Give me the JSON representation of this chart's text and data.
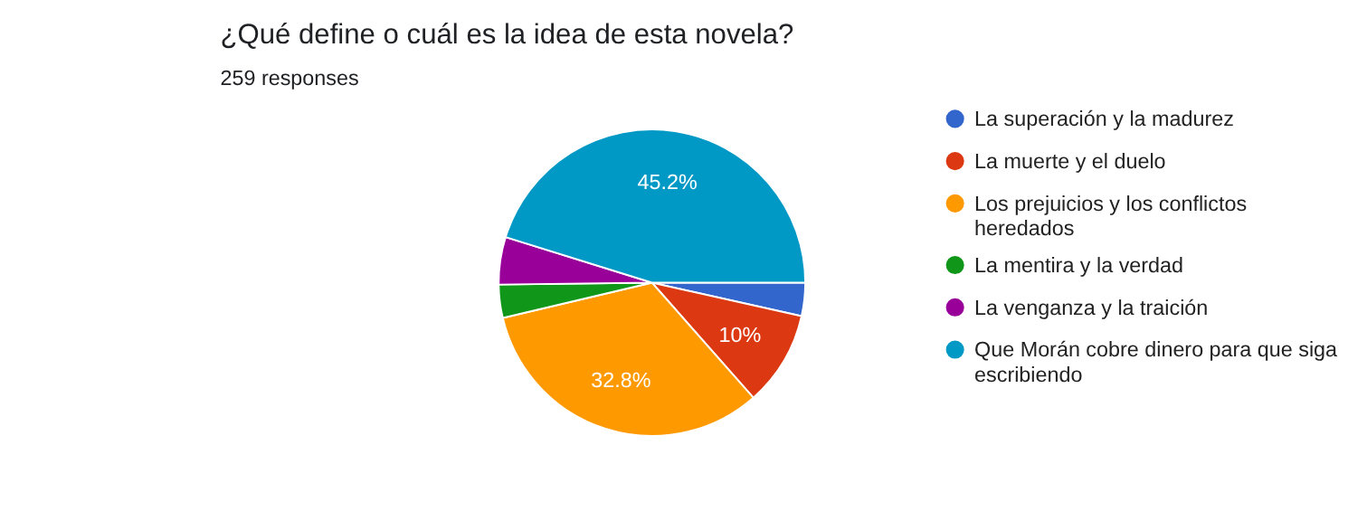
{
  "chart_data": {
    "type": "pie",
    "title": "¿Qué define o cuál es la idea de esta novela?",
    "subtitle": "259 responses",
    "categories": [
      "La superación y la madurez",
      "La muerte y el duelo",
      "Los prejuicios y los conflictos heredados",
      "La mentira y la verdad",
      "La venganza y la traición",
      "Que Morán cobre dinero para que siga escribiendo"
    ],
    "values": [
      3.5,
      10,
      32.8,
      3.5,
      5,
      45.2
    ],
    "value_labels": [
      null,
      "10%",
      "32.8%",
      null,
      null,
      "45.2%"
    ],
    "colors": [
      "#3366cc",
      "#dc3912",
      "#ff9900",
      "#109618",
      "#990099",
      "#0099c6"
    ],
    "legend": "right"
  }
}
